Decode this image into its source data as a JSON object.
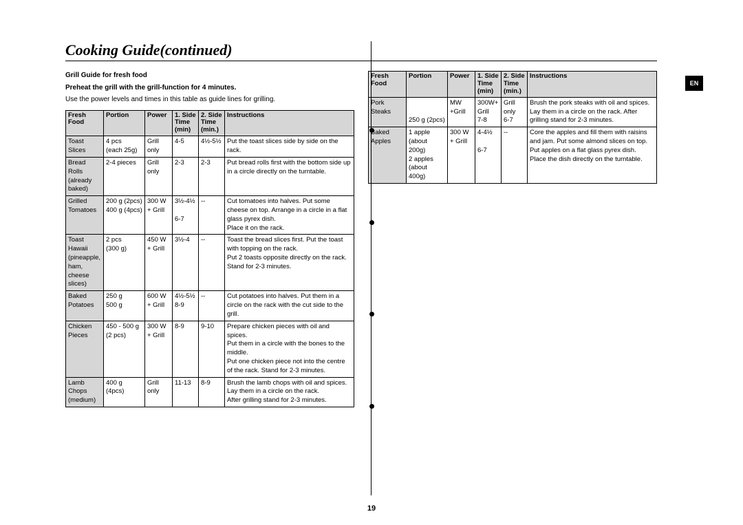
{
  "page": {
    "title": "Cooking Guide(continued)",
    "number": "19",
    "lang_tab": "EN"
  },
  "section": {
    "heading": "Grill Guide for fresh food",
    "preheat": "Preheat the grill with the grill-function for 4 minutes.",
    "note": "Use the power levels and times in this table as guide lines for grilling."
  },
  "headers": {
    "food": "Fresh Food",
    "portion": "Portion",
    "power": "Power",
    "t1": "1. Side Time (min)",
    "t2": "2. Side Time (min.)",
    "instr": "Instructions"
  },
  "left_rows": [
    {
      "food": "Toast Slices",
      "portion": "4 pcs\n(each 25g)",
      "power": "Grill only",
      "t1": "4-5",
      "t2": "4½-5½",
      "instr": "Put the toast slices side by side on the rack."
    },
    {
      "food": "Bread Rolls (already baked)",
      "portion": "2-4 pieces",
      "power": "Grill only",
      "t1": "2-3",
      "t2": "2-3",
      "instr": "Put bread rolls first with the bottom side up in a circle directly on the turntable."
    },
    {
      "food": "Grilled Tomatoes",
      "portion": "200 g (2pcs)\n400 g (4pcs)",
      "power": "300 W + Grill",
      "t1": "3½-4½\n\n6-7",
      "t2": "--",
      "instr": "Cut tomatoes into halves. Put some cheese on top. Arrange in a circle in a flat glass pyrex dish.\nPlace it on the rack."
    },
    {
      "food": "Toast Hawaii (pineapple, ham, cheese slices)",
      "portion": "2 pcs\n(300 g)",
      "power": "450 W + Grill",
      "t1": "3½-4",
      "t2": "--",
      "instr": "Toast the bread slices first. Put the toast with topping on the rack.\nPut 2 toasts opposite directly on the rack.\nStand for 2-3 minutes."
    },
    {
      "food": "Baked Potatoes",
      "portion": "250 g\n500 g",
      "power": "600 W + Grill",
      "t1": "4½-5½\n8-9",
      "t2": "--",
      "instr": "Cut potatoes into halves. Put them in a circle on the rack with the cut side to the grill."
    },
    {
      "food": "Chicken Pieces",
      "portion": "450 - 500 g\n(2 pcs)",
      "power": "300 W + Grill",
      "t1": "8-9",
      "t2": "9-10",
      "instr": "Prepare chicken pieces with oil and spices.\nPut them in a circle with the bones to the middle.\nPut one chicken piece not into the centre of the rack. Stand for 2-3 minutes."
    },
    {
      "food": "Lamb Chops (medium)",
      "portion": "400 g\n(4pcs)",
      "power": "Grill only",
      "t1": "11-13",
      "t2": "8-9",
      "instr": "Brush the lamb chops with oil and spices.\nLay them in a circle on the rack.\nAfter grilling stand for 2-3 minutes."
    }
  ],
  "right_rows": [
    {
      "food": "Pork Steaks",
      "portion": "\n\n250 g (2pcs)",
      "power": "MW +Grill",
      "t1": "300W+ Grill\n7-8",
      "t2": "Grill only\n6-7",
      "instr": "Brush the pork steaks with oil and spices.\nLay them in a circle on the rack. After grilling stand for 2-3 minutes."
    },
    {
      "food": "Baked Apples",
      "portion": "1 apple (about 200g)\n2 apples (about 400g)",
      "power": "300 W + Grill",
      "t1": "4-4½\n\n6-7",
      "t2": "--",
      "instr": "Core the apples and fill them with raisins and jam. Put some almond slices on top. Put apples on a flat glass pyrex dish. Place the dish directly on the turntable."
    }
  ]
}
